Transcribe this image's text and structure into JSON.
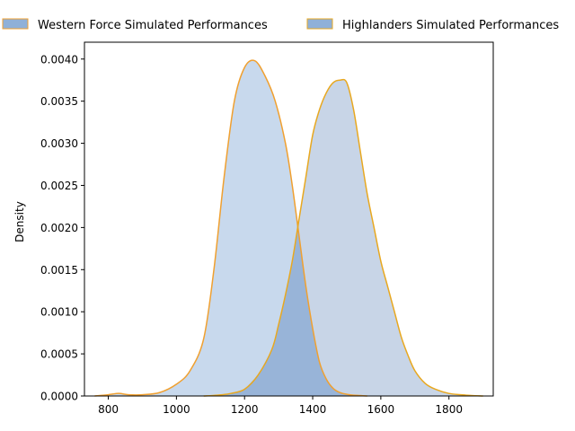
{
  "chart_data": {
    "type": "area",
    "ylabel": "Density",
    "xlim": [
      730,
      1930
    ],
    "ylim": [
      0,
      0.0042
    ],
    "x_ticks": [
      800,
      1000,
      1200,
      1400,
      1600,
      1800
    ],
    "y_ticks": [
      0.0,
      0.0005,
      0.001,
      0.0015,
      0.002,
      0.0025,
      0.003,
      0.0035,
      0.004
    ],
    "y_tick_labels": [
      "0.0000",
      "0.0005",
      "0.0010",
      "0.0015",
      "0.0020",
      "0.0025",
      "0.0030",
      "0.0035",
      "0.0040"
    ],
    "grid": false,
    "legend_position": "top",
    "series": [
      {
        "name": "Western Force Simulated Performances",
        "fill": "#c5d7ec",
        "stroke": "#f0a030",
        "x": [
          760,
          800,
          830,
          860,
          900,
          950,
          1000,
          1040,
          1080,
          1110,
          1140,
          1170,
          1200,
          1230,
          1260,
          1290,
          1320,
          1340,
          1360,
          1380,
          1400,
          1420,
          1440,
          1460,
          1480,
          1500,
          1520,
          1540,
          1560
        ],
        "y": [
          0.0,
          1.5e-05,
          3e-05,
          1.5e-05,
          1.5e-05,
          4e-05,
          0.00014,
          0.0003,
          0.00068,
          0.0015,
          0.0026,
          0.0035,
          0.0039,
          0.00398,
          0.0038,
          0.0035,
          0.003,
          0.0025,
          0.0019,
          0.0013,
          0.0008,
          0.0004,
          0.0002,
          9e-05,
          4e-05,
          2e-05,
          1e-05,
          5e-06,
          0.0
        ]
      },
      {
        "name": "Highlanders Simulated Performances",
        "fill": "#c5d3e6",
        "stroke": "#e8a820",
        "x": [
          1080,
          1120,
          1160,
          1200,
          1240,
          1280,
          1300,
          1320,
          1340,
          1360,
          1380,
          1400,
          1420,
          1440,
          1460,
          1480,
          1500,
          1520,
          1540,
          1560,
          1580,
          1600,
          1620,
          1640,
          1660,
          1680,
          1700,
          1730,
          1760,
          1800,
          1850,
          1900
        ],
        "y": [
          0.0,
          1e-05,
          3e-05,
          8e-05,
          0.00025,
          0.00055,
          0.00085,
          0.0012,
          0.0016,
          0.0021,
          0.0026,
          0.0031,
          0.0034,
          0.0036,
          0.00372,
          0.00375,
          0.00372,
          0.0034,
          0.0029,
          0.0024,
          0.002,
          0.0016,
          0.0013,
          0.001,
          0.0007,
          0.00048,
          0.0003,
          0.00015,
          8e-05,
          3e-05,
          1e-05,
          0.0
        ]
      }
    ],
    "overlap_fill": "#98b4d8"
  }
}
